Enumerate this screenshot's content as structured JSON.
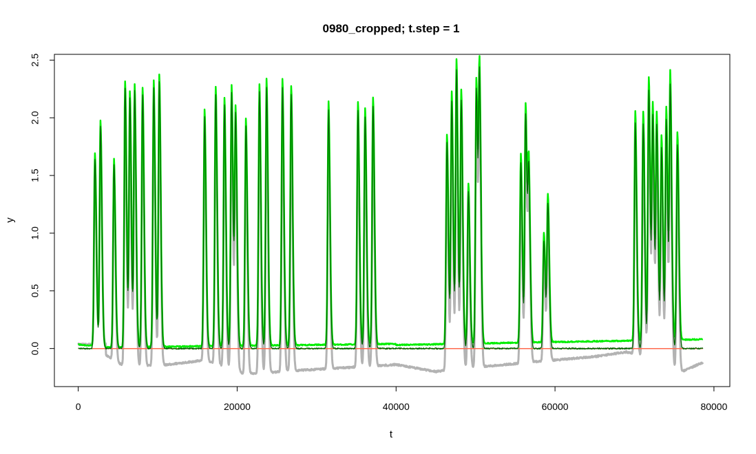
{
  "chart_data": {
    "type": "line",
    "title": "0980_cropped; t.step = 1",
    "xlabel": "t",
    "ylabel": "y",
    "xlim": [
      -3000,
      82000
    ],
    "ylim": [
      -0.33,
      2.55
    ],
    "x_ticks": [
      0,
      20000,
      40000,
      60000,
      80000
    ],
    "x_tick_labels": [
      "0",
      "20000",
      "40000",
      "60000",
      "80000"
    ],
    "y_ticks": [
      0.0,
      0.5,
      1.0,
      1.5,
      2.0,
      2.5
    ],
    "y_tick_labels": [
      "0.0",
      "0.5",
      "1.0",
      "1.5",
      "2.0",
      "2.5"
    ],
    "grid": false,
    "legend": "none",
    "series_colors": {
      "raw_signal": "#b3b3b3",
      "baseline": "#ff6a4d",
      "fit": "#00ee00",
      "corrected": "#006400"
    },
    "t_range": [
      0,
      78600
    ],
    "peaks": [
      {
        "t": 2100,
        "y": 1.67
      },
      {
        "t": 2800,
        "y": 1.96
      },
      {
        "t": 4500,
        "y": 1.63
      },
      {
        "t": 5900,
        "y": 2.3
      },
      {
        "t": 6500,
        "y": 2.21
      },
      {
        "t": 7100,
        "y": 2.27
      },
      {
        "t": 8100,
        "y": 2.25
      },
      {
        "t": 9500,
        "y": 2.31
      },
      {
        "t": 10200,
        "y": 2.36
      },
      {
        "t": 15900,
        "y": 2.05
      },
      {
        "t": 17300,
        "y": 2.25
      },
      {
        "t": 18400,
        "y": 2.15
      },
      {
        "t": 19300,
        "y": 2.26
      },
      {
        "t": 19800,
        "y": 2.04
      },
      {
        "t": 21100,
        "y": 1.97
      },
      {
        "t": 22800,
        "y": 2.27
      },
      {
        "t": 23700,
        "y": 2.31
      },
      {
        "t": 25700,
        "y": 2.31
      },
      {
        "t": 26800,
        "y": 2.25
      },
      {
        "t": 31500,
        "y": 2.11
      },
      {
        "t": 35200,
        "y": 2.1
      },
      {
        "t": 36100,
        "y": 2.05
      },
      {
        "t": 37100,
        "y": 2.14
      },
      {
        "t": 46400,
        "y": 1.82
      },
      {
        "t": 47000,
        "y": 2.18
      },
      {
        "t": 47600,
        "y": 2.46
      },
      {
        "t": 48200,
        "y": 2.19
      },
      {
        "t": 49100,
        "y": 1.39
      },
      {
        "t": 50100,
        "y": 2.3
      },
      {
        "t": 50500,
        "y": 2.3
      },
      {
        "t": 55700,
        "y": 1.64
      },
      {
        "t": 56300,
        "y": 2.07
      },
      {
        "t": 56700,
        "y": 1.48
      },
      {
        "t": 58600,
        "y": 0.95
      },
      {
        "t": 59100,
        "y": 1.27
      },
      {
        "t": 70100,
        "y": 1.99
      },
      {
        "t": 71100,
        "y": 1.98
      },
      {
        "t": 71800,
        "y": 2.28
      },
      {
        "t": 72300,
        "y": 2.02
      },
      {
        "t": 72800,
        "y": 1.94
      },
      {
        "t": 73400,
        "y": 1.77
      },
      {
        "t": 74000,
        "y": 2.02
      },
      {
        "t": 74500,
        "y": 2.3
      },
      {
        "t": 75400,
        "y": 1.8
      }
    ]
  }
}
